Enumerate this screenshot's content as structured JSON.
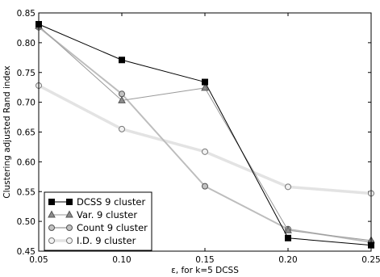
{
  "chart_data": {
    "type": "line",
    "xlabel": "ε, for k=5 DCSS",
    "ylabel": "Clustering adjusted Rand index",
    "xlim": [
      0.05,
      0.25
    ],
    "ylim": [
      0.45,
      0.85
    ],
    "x": [
      0.05,
      0.1,
      0.15,
      0.2,
      0.25
    ],
    "xticks": [
      "0.05",
      "0.10",
      "0.15",
      "0.20",
      "0.25"
    ],
    "yticks": [
      "0.45",
      "0.50",
      "0.55",
      "0.60",
      "0.65",
      "0.70",
      "0.75",
      "0.80",
      "0.85"
    ],
    "legend_position": "bottom-left",
    "grid": false,
    "series": [
      {
        "name": "DCSS 9 cluster",
        "values": [
          0.831,
          0.771,
          0.734,
          0.472,
          0.46
        ],
        "color": "#000000",
        "width": 1,
        "marker": "square",
        "marker_fill": "#000000",
        "marker_stroke": "#000000"
      },
      {
        "name": "Var. 9 cluster",
        "values": [
          0.828,
          0.703,
          0.724,
          0.485,
          0.468
        ],
        "color": "#9a9a9a",
        "width": 1,
        "marker": "triangle",
        "marker_fill": "#8c8c8c",
        "marker_stroke": "#555555"
      },
      {
        "name": "Count 9 cluster",
        "values": [
          0.826,
          0.714,
          0.559,
          0.487,
          0.465
        ],
        "color": "#bdbdbd",
        "width": 2,
        "marker": "circle",
        "marker_fill": "#c2c2c2",
        "marker_stroke": "#555555"
      },
      {
        "name": "I.D. 9 cluster",
        "values": [
          0.728,
          0.655,
          0.617,
          0.558,
          0.547
        ],
        "color": "#e3e3e3",
        "width": 3.5,
        "marker": "circle",
        "marker_fill": "#f2f2f2",
        "marker_stroke": "#777777"
      }
    ]
  }
}
